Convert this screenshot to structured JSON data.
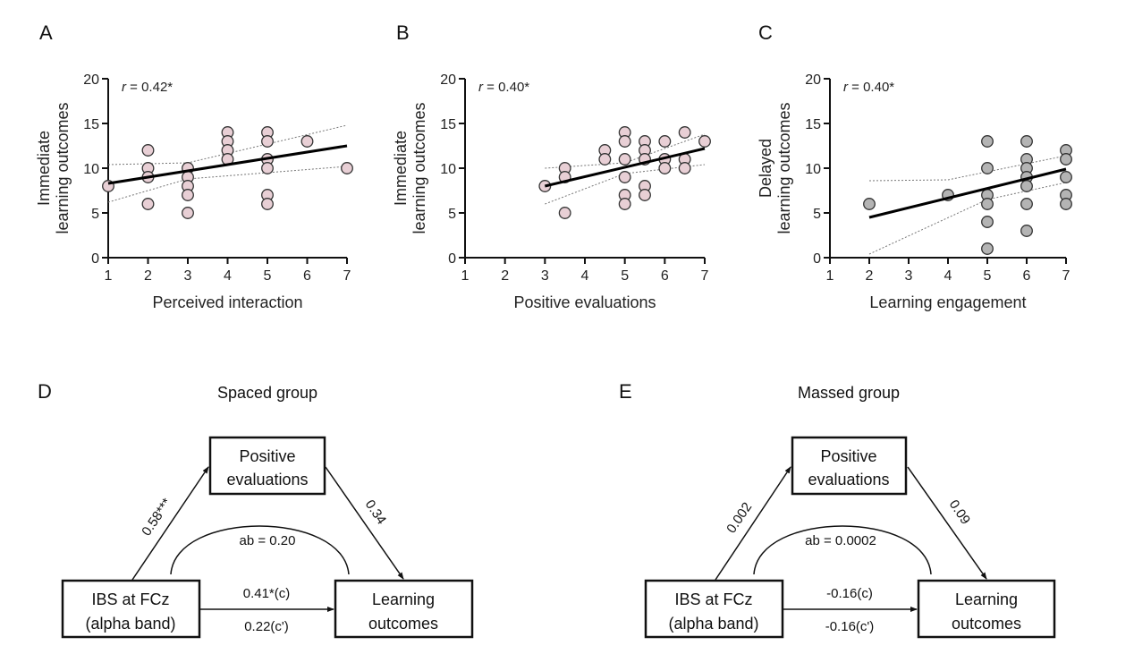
{
  "chart_data": [
    {
      "panel": "A",
      "type": "scatter",
      "annotation_prefix": "r",
      "annotation": " = 0.42*",
      "xlabel": "Perceived interaction",
      "ylabel_lines": [
        "Immediate",
        "learning outcomes"
      ],
      "xlim": [
        1,
        7
      ],
      "ylim": [
        0,
        20
      ],
      "xticks": [
        1,
        2,
        3,
        4,
        5,
        6,
        7
      ],
      "yticks": [
        0,
        5,
        10,
        15,
        20
      ],
      "point_color": "#e8cfd5",
      "fit": {
        "x": [
          1,
          7
        ],
        "y": [
          8.3,
          12.5
        ]
      },
      "ci_upper": {
        "x": [
          1,
          3,
          7
        ],
        "y": [
          10.4,
          10.6,
          14.8
        ]
      },
      "ci_lower": {
        "x": [
          1,
          3,
          7
        ],
        "y": [
          6.2,
          8.8,
          10.2
        ]
      },
      "points": [
        [
          1,
          8
        ],
        [
          2,
          12
        ],
        [
          2,
          10
        ],
        [
          2,
          9
        ],
        [
          2,
          6
        ],
        [
          3,
          10
        ],
        [
          3,
          9
        ],
        [
          3,
          8
        ],
        [
          3,
          7
        ],
        [
          3,
          5
        ],
        [
          4,
          14
        ],
        [
          4,
          13
        ],
        [
          4,
          12
        ],
        [
          4,
          11
        ],
        [
          5,
          14
        ],
        [
          5,
          13
        ],
        [
          5,
          11
        ],
        [
          5,
          10
        ],
        [
          5,
          7
        ],
        [
          5,
          6
        ],
        [
          6,
          13
        ],
        [
          7,
          10
        ]
      ]
    },
    {
      "panel": "B",
      "type": "scatter",
      "annotation_prefix": "r",
      "annotation": " = 0.40*",
      "xlabel": "Positive evaluations",
      "ylabel_lines": [
        "Immediate",
        "learning outcomes"
      ],
      "xlim": [
        1,
        7
      ],
      "ylim": [
        0,
        20
      ],
      "xticks": [
        1,
        2,
        3,
        4,
        5,
        6,
        7
      ],
      "yticks": [
        0,
        5,
        10,
        15,
        20
      ],
      "point_color": "#e8cfd5",
      "fit": {
        "x": [
          3,
          7
        ],
        "y": [
          8.0,
          12.2
        ]
      },
      "ci_upper": {
        "x": [
          3,
          5,
          7
        ],
        "y": [
          10.0,
          10.6,
          13.8
        ]
      },
      "ci_lower": {
        "x": [
          3,
          5,
          7
        ],
        "y": [
          6.0,
          9.4,
          10.4
        ]
      },
      "points": [
        [
          3,
          8
        ],
        [
          3.5,
          10
        ],
        [
          3.5,
          9
        ],
        [
          3.5,
          5
        ],
        [
          4.5,
          12
        ],
        [
          4.5,
          11
        ],
        [
          5,
          14
        ],
        [
          5,
          13
        ],
        [
          5,
          11
        ],
        [
          5,
          9
        ],
        [
          5,
          7
        ],
        [
          5,
          6
        ],
        [
          5.5,
          13
        ],
        [
          5.5,
          12
        ],
        [
          5.5,
          11
        ],
        [
          5.5,
          8
        ],
        [
          5.5,
          7
        ],
        [
          6,
          13
        ],
        [
          6,
          11
        ],
        [
          6,
          10
        ],
        [
          6.5,
          14
        ],
        [
          6.5,
          11
        ],
        [
          6.5,
          10
        ],
        [
          7,
          13
        ]
      ]
    },
    {
      "panel": "C",
      "type": "scatter",
      "annotation_prefix": "r",
      "annotation": " = 0.40*",
      "xlabel": "Learning engagement",
      "ylabel_lines": [
        "Delayed",
        "learning outcomes"
      ],
      "xlim": [
        1,
        7
      ],
      "ylim": [
        0,
        20
      ],
      "xticks": [
        1,
        2,
        3,
        4,
        5,
        6,
        7
      ],
      "yticks": [
        0,
        5,
        10,
        15,
        20
      ],
      "point_color": "#b4b4b4",
      "fit": {
        "x": [
          2,
          7
        ],
        "y": [
          4.5,
          9.9
        ]
      },
      "ci_upper": {
        "x": [
          2,
          4,
          7
        ],
        "y": [
          8.6,
          8.7,
          11.4
        ]
      },
      "ci_lower": {
        "x": [
          2,
          5,
          7
        ],
        "y": [
          0.4,
          6.5,
          8.4
        ]
      },
      "points": [
        [
          2,
          6
        ],
        [
          4,
          7
        ],
        [
          5,
          13
        ],
        [
          5,
          10
        ],
        [
          5,
          7
        ],
        [
          5,
          6
        ],
        [
          5,
          4
        ],
        [
          5,
          1
        ],
        [
          6,
          13
        ],
        [
          6,
          11
        ],
        [
          6,
          10
        ],
        [
          6,
          9
        ],
        [
          6,
          8
        ],
        [
          6,
          6
        ],
        [
          6,
          3
        ],
        [
          7,
          12
        ],
        [
          7,
          11
        ],
        [
          7,
          9
        ],
        [
          7,
          7
        ],
        [
          7,
          6
        ]
      ]
    }
  ],
  "mediation": [
    {
      "panel": "D",
      "title": "Spaced group",
      "mediator_lines": [
        "Positive",
        "evaluations"
      ],
      "predictor_lines": [
        "IBS at FCz",
        "(alpha band)"
      ],
      "outcome_lines": [
        "Learning",
        "outcomes"
      ],
      "path_a": "0.58***",
      "path_b": "0.34",
      "indirect": "ab = 0.20",
      "path_c": "0.41*(c)",
      "path_c_prime": "0.22(c')"
    },
    {
      "panel": "E",
      "title": "Massed group",
      "mediator_lines": [
        "Positive",
        "evaluations"
      ],
      "predictor_lines": [
        "IBS at FCz",
        "(alpha band)"
      ],
      "outcome_lines": [
        "Learning",
        "outcomes"
      ],
      "path_a": "0.002",
      "path_b": "0.09",
      "indirect": "ab = 0.0002",
      "path_c": "-0.16(c)",
      "path_c_prime": "-0.16(c')"
    }
  ]
}
